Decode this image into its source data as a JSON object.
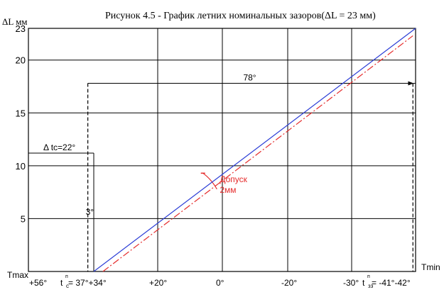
{
  "chart_data": {
    "type": "line",
    "title": "Рисунок 4.5 - График летних номинальных зазоров(ΔL = 23 мм)",
    "ylabel": "ΔL мм",
    "x_min_label": "Tmax",
    "x_max_label": "Tmin",
    "ylim": [
      0,
      23
    ],
    "xlim_temp": [
      56,
      -42
    ],
    "y_ticks": [
      {
        "value": 23,
        "label": "23"
      },
      {
        "value": 20,
        "label": "20"
      },
      {
        "value": 15,
        "label": "15"
      },
      {
        "value": 10,
        "label": "10"
      },
      {
        "value": 5,
        "label": "5"
      }
    ],
    "x_ticks": [
      {
        "value": 56,
        "label": "+56°"
      },
      {
        "value": 37,
        "label": "t"
      },
      {
        "value": 34,
        "label": "= 37°+34°"
      },
      {
        "value": 20,
        "label": "+20°"
      },
      {
        "value": 0,
        "label": "0°"
      },
      {
        "value": -20,
        "label": "-20°"
      },
      {
        "value": -30,
        "label": "-30°"
      },
      {
        "value": -41,
        "label": "t"
      },
      {
        "value": -42,
        "label": "= -41°-42°"
      }
    ],
    "x_tick_sub": [
      {
        "value": 37,
        "label": "с"
      },
      {
        "value": -41,
        "label": "зз"
      }
    ],
    "x_tick_sup": [
      {
        "value": 37,
        "label": "п"
      },
      {
        "value": -41,
        "label": "п"
      }
    ],
    "series": [
      {
        "color": "#2a3cd6",
        "points": [
          [
            34,
            0
          ],
          [
            -42,
            23
          ]
        ]
      },
      {
        "color": "#e52b2b",
        "dash": "dashdot",
        "points": [
          [
            32,
            0
          ],
          [
            -41.5,
            22.3
          ]
        ]
      }
    ],
    "annotations": {
      "span_78": {
        "label": "78°",
        "x_from": 36,
        "x_to": -41.5,
        "y": 17.8
      },
      "delta_tc": {
        "label": "Δ tc=22°",
        "x_from": 56,
        "x_to": 34,
        "y": 11.2
      },
      "three_deg": {
        "label": "3°",
        "x": 36,
        "y": 5.5
      },
      "tolerance": {
        "label_line1": "Допуск",
        "label_line2": "2мм",
        "x": 3,
        "y": 9
      }
    }
  },
  "colors": {
    "blue_line": "#2a3cd6",
    "red_line": "#e52b2b",
    "grid": "#000000"
  }
}
